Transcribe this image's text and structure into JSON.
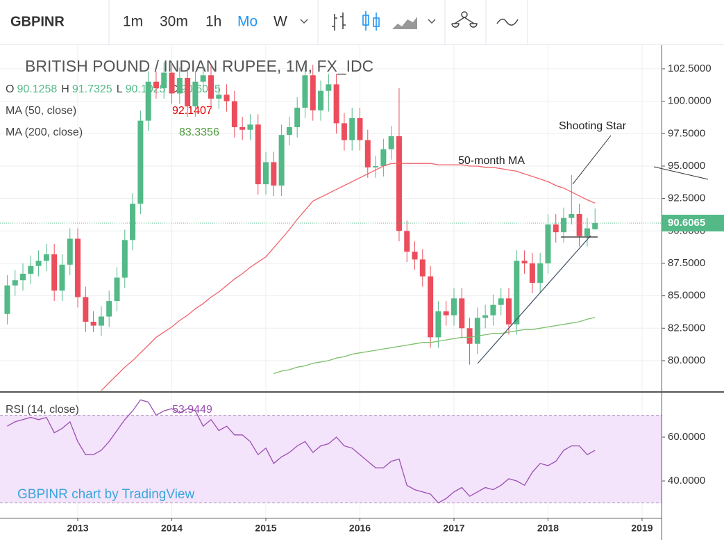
{
  "toolbar": {
    "symbol": "GBPINR",
    "intervals": [
      "1m",
      "30m",
      "1h",
      "Mo",
      "W"
    ],
    "active_interval": "Mo"
  },
  "chart_data": [
    {
      "type": "candlestick",
      "title": "BRITISH POUND / INDIAN RUPEE, 1M, FX_IDC",
      "ohlc_prefixes": [
        "O",
        "H",
        "L",
        "C"
      ],
      "up_color": "#53b987",
      "down_color": "#eb4d5c",
      "x": [
        2012.25,
        2012.3333,
        2012.4167,
        2012.5,
        2012.5833,
        2012.6667,
        2012.75,
        2012.8333,
        2012.9167,
        2013,
        2013.0833,
        2013.1667,
        2013.25,
        2013.3333,
        2013.4167,
        2013.5,
        2013.5833,
        2013.6667,
        2013.75,
        2013.8333,
        2013.9167,
        2014,
        2014.0833,
        2014.1667,
        2014.25,
        2014.3333,
        2014.4167,
        2014.5,
        2014.5833,
        2014.6667,
        2014.75,
        2014.8333,
        2014.9167,
        2015,
        2015.0833,
        2015.1667,
        2015.25,
        2015.3333,
        2015.4167,
        2015.5,
        2015.5833,
        2015.6667,
        2015.75,
        2015.8333,
        2015.9167,
        2016,
        2016.0833,
        2016.1667,
        2016.25,
        2016.3333,
        2016.4167,
        2016.5,
        2016.5833,
        2016.6667,
        2016.75,
        2016.8333,
        2016.9167,
        2017,
        2017.0833,
        2017.1667,
        2017.25,
        2017.3333,
        2017.4167,
        2017.5,
        2017.5833,
        2017.6667,
        2017.75,
        2017.8333,
        2017.9167,
        2018,
        2018.0833,
        2018.1667,
        2018.25,
        2018.3333,
        2018.4167,
        2018.5
      ],
      "open": [
        83.6,
        85.8,
        86.2,
        86.7,
        87.3,
        87.7,
        88.2,
        85.4,
        87.4,
        89.4,
        84.9,
        83.0,
        82.7,
        83.4,
        84.6,
        86.4,
        89.3,
        92.1,
        98.5,
        101.5,
        101.0,
        102.2,
        100.6,
        101.8,
        99.6,
        101.5,
        102.0,
        100.2,
        100.5,
        100.0,
        98.0,
        97.8,
        98.2,
        93.6,
        95.3,
        93.5,
        97.4,
        98.0,
        99.5,
        102.0,
        99.3,
        100.8,
        101.3,
        98.3,
        97.0,
        98.7,
        97.0,
        94.9,
        95.0,
        96.3,
        97.3,
        90.0,
        88.4,
        87.8,
        86.5,
        81.8,
        83.8,
        83.5,
        84.8,
        82.5,
        81.3,
        83.3,
        83.5,
        84.3,
        84.8,
        82.8,
        87.7,
        87.5,
        86.0,
        87.5,
        90.5,
        89.9,
        91.0,
        91.3,
        89.6,
        90.1258
      ],
      "high": [
        86.6,
        87.0,
        87.5,
        88.1,
        88.5,
        89.0,
        89.0,
        88.2,
        90.2,
        90.2,
        85.7,
        83.8,
        84.2,
        85.4,
        87.2,
        90.1,
        92.9,
        99.3,
        102.3,
        102.3,
        103.0,
        103.0,
        102.6,
        102.6,
        102.3,
        102.8,
        102.8,
        101.3,
        101.3,
        100.8,
        98.8,
        99.0,
        99.0,
        96.1,
        96.1,
        98.2,
        98.8,
        100.3,
        102.8,
        102.8,
        101.6,
        102.1,
        102.1,
        99.1,
        99.5,
        99.5,
        97.8,
        95.8,
        97.1,
        98.1,
        101.0,
        90.8,
        89.2,
        88.6,
        87.3,
        84.6,
        84.6,
        85.6,
        85.6,
        83.3,
        84.1,
        84.3,
        85.1,
        85.6,
        85.6,
        88.5,
        88.5,
        88.3,
        88.3,
        91.3,
        91.3,
        91.8,
        94.3,
        92.1,
        91.0,
        91.7325
      ],
      "low": [
        82.8,
        85.0,
        85.4,
        85.9,
        86.5,
        86.9,
        84.6,
        84.6,
        86.6,
        84.1,
        82.2,
        82.2,
        81.9,
        82.6,
        83.8,
        85.6,
        88.5,
        91.3,
        97.7,
        100.2,
        100.2,
        99.8,
        99.8,
        98.8,
        98.8,
        100.7,
        99.4,
        99.4,
        99.2,
        97.2,
        97.0,
        97.0,
        92.8,
        92.8,
        92.7,
        92.7,
        96.6,
        97.2,
        98.7,
        98.5,
        98.5,
        99.2,
        97.5,
        96.2,
        96.2,
        96.2,
        94.1,
        94.1,
        94.2,
        95.5,
        89.2,
        87.6,
        87.0,
        85.7,
        81.0,
        81.0,
        82.7,
        82.7,
        81.7,
        79.7,
        80.5,
        82.5,
        82.7,
        83.5,
        82.0,
        82.0,
        86.7,
        85.2,
        85.2,
        86.7,
        89.1,
        89.1,
        90.5,
        88.8,
        88.8,
        90.1025
      ],
      "close": [
        85.8,
        86.2,
        86.7,
        87.3,
        87.7,
        88.2,
        85.4,
        87.4,
        89.4,
        84.9,
        83.0,
        82.7,
        83.4,
        84.6,
        86.4,
        89.3,
        92.1,
        98.5,
        101.5,
        101.0,
        102.2,
        100.6,
        101.8,
        99.6,
        101.5,
        102.0,
        100.2,
        100.5,
        100.0,
        98.0,
        97.8,
        98.2,
        93.6,
        95.3,
        93.5,
        97.4,
        98.0,
        99.5,
        102.0,
        99.3,
        100.8,
        101.3,
        98.3,
        97.0,
        98.7,
        97.0,
        94.9,
        95.0,
        96.3,
        97.3,
        90.0,
        88.4,
        87.8,
        86.5,
        81.8,
        83.8,
        83.5,
        84.8,
        82.5,
        81.3,
        83.3,
        83.5,
        84.3,
        84.8,
        82.8,
        87.7,
        87.5,
        86.0,
        87.5,
        90.5,
        89.9,
        91.0,
        91.3,
        89.6,
        90.2,
        90.6065
      ],
      "series": [
        {
          "name": "MA (50, close)",
          "color": "#f0636b",
          "label_color": "#e00000",
          "values": [
            null,
            null,
            null,
            null,
            null,
            null,
            null,
            null,
            null,
            null,
            null,
            null,
            77.7,
            78.3,
            78.9,
            79.5,
            80.0,
            80.6,
            81.2,
            81.8,
            82.2,
            82.6,
            83.1,
            83.5,
            84.0,
            84.4,
            84.9,
            85.3,
            85.8,
            86.3,
            86.7,
            87.2,
            87.6,
            88.0,
            88.7,
            89.4,
            90.1,
            90.9,
            91.6,
            92.3,
            92.6,
            92.9,
            93.2,
            93.5,
            93.8,
            94.1,
            94.4,
            94.7,
            95.0,
            95.2,
            95.2,
            95.2,
            95.2,
            95.2,
            95.2,
            95.1,
            95.1,
            95.1,
            95.1,
            95.0,
            95.0,
            94.9,
            94.9,
            94.8,
            94.7,
            94.6,
            94.4,
            94.2,
            94.0,
            93.8,
            93.5,
            93.3,
            93.0,
            92.7,
            92.4,
            92.1407
          ]
        },
        {
          "name": "MA (200, close)",
          "color": "#7cbf6a",
          "label_color": "#4f9a3c",
          "values": [
            null,
            null,
            null,
            null,
            null,
            null,
            null,
            null,
            null,
            null,
            null,
            null,
            null,
            null,
            null,
            null,
            null,
            null,
            null,
            null,
            null,
            null,
            null,
            null,
            null,
            null,
            null,
            null,
            null,
            null,
            null,
            null,
            null,
            null,
            79.0,
            79.2,
            79.3,
            79.5,
            79.6,
            79.8,
            79.9,
            80.0,
            80.2,
            80.3,
            80.5,
            80.6,
            80.7,
            80.8,
            80.9,
            81.0,
            81.1,
            81.2,
            81.3,
            81.4,
            81.4,
            81.5,
            81.6,
            81.7,
            81.8,
            81.8,
            81.9,
            82.0,
            82.1,
            82.1,
            82.2,
            82.3,
            82.4,
            82.4,
            82.5,
            82.6,
            82.7,
            82.8,
            82.9,
            83.0,
            83.2,
            83.3356
          ]
        }
      ],
      "annotations": [
        "Shooting Star",
        "50-month MA"
      ],
      "xlim": [
        2012.173,
        2019.207
      ],
      "xticks": [
        2013,
        2014,
        2015,
        2016,
        2017,
        2018,
        2019
      ],
      "ylim": [
        77.64,
        104.32
      ],
      "yticks": [
        {
          "value": 80,
          "label": "80.0000"
        },
        {
          "value": 82.5,
          "label": "82.5000"
        },
        {
          "value": 85,
          "label": "85.0000"
        },
        {
          "value": 87.5,
          "label": "87.5000"
        },
        {
          "value": 90,
          "label": "90.0000"
        },
        {
          "value": 92.5,
          "label": "92.5000"
        },
        {
          "value": 95,
          "label": "95.0000"
        },
        {
          "value": 97.5,
          "label": "97.5000"
        },
        {
          "value": 100,
          "label": "100.0000"
        },
        {
          "value": 102.5,
          "label": "102.5000"
        }
      ],
      "grid": true,
      "last_price_line": true
    },
    {
      "type": "line",
      "x": [
        2012.25,
        2012.3333,
        2012.4167,
        2012.5,
        2012.5833,
        2012.6667,
        2012.75,
        2012.8333,
        2012.9167,
        2013,
        2013.0833,
        2013.1667,
        2013.25,
        2013.3333,
        2013.4167,
        2013.5,
        2013.5833,
        2013.6667,
        2013.75,
        2013.8333,
        2013.9167,
        2014,
        2014.0833,
        2014.1667,
        2014.25,
        2014.3333,
        2014.4167,
        2014.5,
        2014.5833,
        2014.6667,
        2014.75,
        2014.8333,
        2014.9167,
        2015,
        2015.0833,
        2015.1667,
        2015.25,
        2015.3333,
        2015.4167,
        2015.5,
        2015.5833,
        2015.6667,
        2015.75,
        2015.8333,
        2015.9167,
        2016,
        2016.0833,
        2016.1667,
        2016.25,
        2016.3333,
        2016.4167,
        2016.5,
        2016.5833,
        2016.6667,
        2016.75,
        2016.8333,
        2016.9167,
        2017,
        2017.0833,
        2017.1667,
        2017.25,
        2017.3333,
        2017.4167,
        2017.5,
        2017.5833,
        2017.6667,
        2017.75,
        2017.8333,
        2017.9167,
        2018,
        2018.0833,
        2018.1667,
        2018.25,
        2018.3333,
        2018.4167,
        2018.5
      ],
      "series": [
        {
          "name": "RSI (14, close)",
          "color": "#9b4fb0",
          "values": [
            65,
            67,
            68,
            69,
            68,
            69,
            62,
            64,
            67,
            58,
            52,
            52,
            54,
            58,
            63,
            68,
            72,
            77,
            76,
            70,
            72,
            73,
            71,
            73,
            72,
            65,
            68,
            63,
            65,
            61,
            61,
            58,
            52,
            55,
            48,
            51,
            53,
            56,
            58,
            53,
            56,
            57,
            60,
            56,
            55,
            52,
            49,
            46,
            46,
            49,
            50,
            38,
            36,
            35,
            34,
            30,
            32,
            35,
            37,
            33,
            35,
            37,
            36,
            38,
            41,
            40,
            38,
            44,
            48,
            47,
            49,
            54,
            56,
            56,
            52,
            53.9449
          ]
        }
      ],
      "bands": [
        30,
        70
      ],
      "band_color": "#f3e3fb",
      "watermark": "GBPINR chart by TradingView",
      "xlim": [
        2012.173,
        2019.207
      ],
      "xticks": [
        2013,
        2014,
        2015,
        2016,
        2017,
        2018,
        2019
      ],
      "ylim": [
        23.2,
        80.3
      ],
      "yticks": [
        {
          "value": 40,
          "label": "40.0000"
        },
        {
          "value": 60,
          "label": "60.0000"
        }
      ],
      "grid": true
    }
  ]
}
